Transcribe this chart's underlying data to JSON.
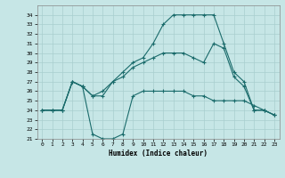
{
  "xlabel": "Humidex (Indice chaleur)",
  "xlim": [
    -0.5,
    23.5
  ],
  "ylim": [
    21,
    35
  ],
  "yticks": [
    21,
    22,
    23,
    24,
    25,
    26,
    27,
    28,
    29,
    30,
    31,
    32,
    33,
    34
  ],
  "xticks": [
    0,
    1,
    2,
    3,
    4,
    5,
    6,
    7,
    8,
    9,
    10,
    11,
    12,
    13,
    14,
    15,
    16,
    17,
    18,
    19,
    20,
    21,
    22,
    23
  ],
  "bg_color": "#c6e6e6",
  "line_color": "#1a6b6b",
  "grid_color": "#a8cece",
  "line1_x": [
    0,
    1,
    2,
    3,
    4,
    5,
    6,
    7,
    8,
    9,
    10,
    11,
    12,
    13,
    14,
    15,
    16,
    17,
    18,
    19,
    20,
    21,
    22,
    23
  ],
  "line1_y": [
    24,
    24,
    24,
    27,
    26.5,
    21.5,
    21.0,
    21.0,
    21.5,
    25.5,
    26.0,
    26.0,
    26.0,
    26.0,
    26.0,
    25.5,
    25.5,
    25.0,
    25.0,
    25.0,
    25.0,
    24.5,
    24.0,
    23.5
  ],
  "line2_x": [
    0,
    1,
    2,
    3,
    4,
    5,
    6,
    7,
    8,
    9,
    10,
    11,
    12,
    13,
    14,
    15,
    16,
    17,
    18,
    19,
    20,
    21,
    22,
    23
  ],
  "line2_y": [
    24,
    24,
    24,
    27,
    26.5,
    25.5,
    25.5,
    27.0,
    28.0,
    29.0,
    29.5,
    31.0,
    33.0,
    34.0,
    34.0,
    34.0,
    34.0,
    34.0,
    31.0,
    28.0,
    27.0,
    24.0,
    24.0,
    23.5
  ],
  "line3_x": [
    0,
    1,
    2,
    3,
    4,
    5,
    6,
    7,
    8,
    9,
    10,
    11,
    12,
    13,
    14,
    15,
    16,
    17,
    18,
    19,
    20,
    21,
    22,
    23
  ],
  "line3_y": [
    24,
    24,
    24,
    27,
    26.5,
    25.5,
    26.0,
    27.0,
    27.5,
    28.5,
    29.0,
    29.5,
    30.0,
    30.0,
    30.0,
    29.5,
    29.0,
    31.0,
    30.5,
    27.5,
    26.5,
    24.0,
    24.0,
    23.5
  ]
}
